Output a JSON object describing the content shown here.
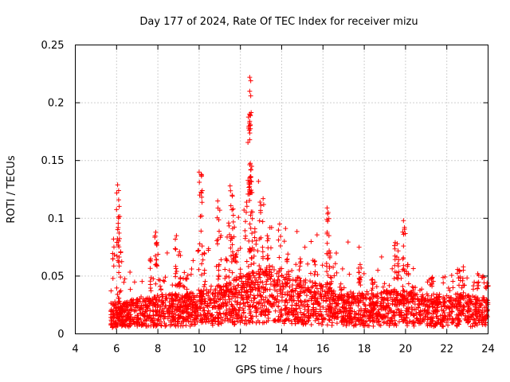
{
  "chart_data": {
    "type": "scatter",
    "title": "Day 177 of 2024, Rate Of TEC Index for receiver mizu",
    "xlabel": "GPS time / hours",
    "ylabel": "ROTI / TECUs",
    "xlim": [
      4,
      24
    ],
    "ylim": [
      0,
      0.25
    ],
    "x_ticks": [
      4,
      6,
      8,
      10,
      12,
      14,
      16,
      18,
      20,
      22,
      24
    ],
    "x_tick_labels": [
      "4",
      "6",
      "8",
      "10",
      "12",
      "14",
      "16",
      "18",
      "20",
      "22",
      "24"
    ],
    "y_ticks": [
      0,
      0.05,
      0.1,
      0.15,
      0.2,
      0.25
    ],
    "y_tick_labels": [
      "0",
      "0.05",
      "0.1",
      "0.15",
      "0.2",
      "0.25"
    ],
    "grid": true,
    "marker": "plus",
    "series": [
      {
        "name": "ROTI",
        "color": "#ff0000",
        "baseline": [
          [
            5.7,
            0.012
          ],
          [
            6.5,
            0.014
          ],
          [
            7.5,
            0.016
          ],
          [
            8.5,
            0.018
          ],
          [
            9.5,
            0.018
          ],
          [
            10.5,
            0.02
          ],
          [
            11.5,
            0.024
          ],
          [
            12.5,
            0.028
          ],
          [
            13.5,
            0.03
          ],
          [
            14.5,
            0.026
          ],
          [
            15.5,
            0.024
          ],
          [
            16.5,
            0.02
          ],
          [
            17.5,
            0.018
          ],
          [
            18.5,
            0.018
          ],
          [
            19.5,
            0.02
          ],
          [
            20.5,
            0.018
          ],
          [
            21.5,
            0.016
          ],
          [
            22.5,
            0.018
          ],
          [
            23.5,
            0.016
          ],
          [
            24.0,
            0.014
          ]
        ],
        "peaks": [
          [
            5.85,
            0.082
          ],
          [
            6.05,
            0.129
          ],
          [
            6.1,
            0.116
          ],
          [
            6.1,
            0.1
          ],
          [
            6.2,
            0.071
          ],
          [
            7.65,
            0.065
          ],
          [
            7.9,
            0.088
          ],
          [
            7.95,
            0.079
          ],
          [
            8.9,
            0.085
          ],
          [
            9.05,
            0.071
          ],
          [
            9.4,
            0.048
          ],
          [
            10.0,
            0.14
          ],
          [
            10.1,
            0.138
          ],
          [
            10.15,
            0.124
          ],
          [
            10.25,
            0.07
          ],
          [
            10.9,
            0.115
          ],
          [
            11.0,
            0.107
          ],
          [
            11.3,
            0.065
          ],
          [
            11.5,
            0.128
          ],
          [
            11.6,
            0.12
          ],
          [
            11.65,
            0.108
          ],
          [
            11.8,
            0.069
          ],
          [
            12.0,
            0.074
          ],
          [
            12.3,
            0.114
          ],
          [
            12.45,
            0.222
          ],
          [
            12.5,
            0.219
          ],
          [
            12.45,
            0.21
          ],
          [
            12.5,
            0.206
          ],
          [
            12.45,
            0.184
          ],
          [
            12.4,
            0.178
          ],
          [
            12.55,
            0.145
          ],
          [
            12.5,
            0.136
          ],
          [
            12.7,
            0.091
          ],
          [
            12.95,
            0.114
          ],
          [
            13.1,
            0.117
          ],
          [
            13.3,
            0.085
          ],
          [
            13.9,
            0.095
          ],
          [
            14.3,
            0.069
          ],
          [
            14.9,
            0.065
          ],
          [
            15.6,
            0.063
          ],
          [
            16.2,
            0.109
          ],
          [
            16.25,
            0.105
          ],
          [
            16.35,
            0.07
          ],
          [
            17.75,
            0.075
          ],
          [
            17.8,
            0.06
          ],
          [
            18.4,
            0.047
          ],
          [
            19.5,
            0.079
          ],
          [
            19.6,
            0.078
          ],
          [
            19.9,
            0.098
          ],
          [
            19.95,
            0.092
          ],
          [
            20.1,
            0.06
          ],
          [
            21.3,
            0.049
          ],
          [
            22.6,
            0.055
          ],
          [
            22.8,
            0.058
          ],
          [
            23.5,
            0.052
          ],
          [
            23.75,
            0.05
          ],
          [
            23.95,
            0.044
          ]
        ]
      }
    ]
  }
}
